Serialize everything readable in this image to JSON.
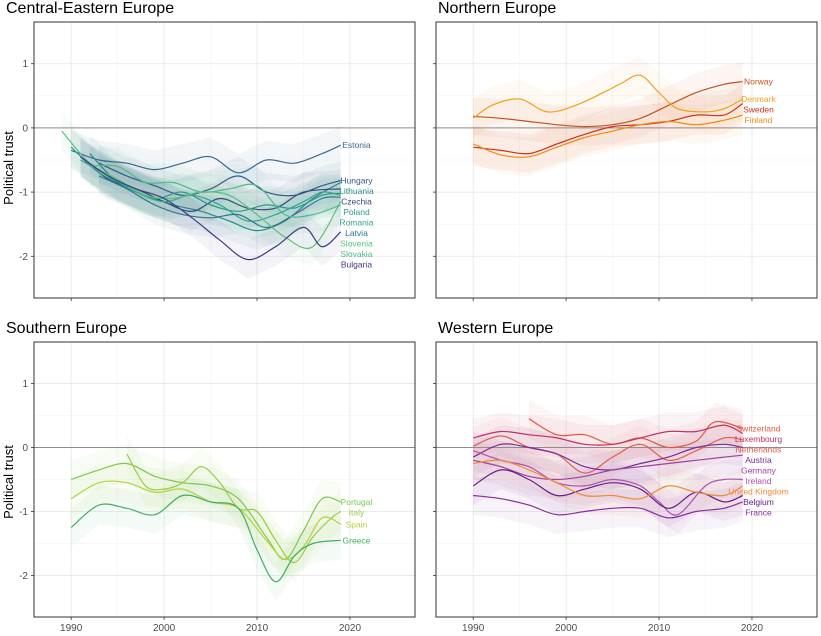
{
  "chart_data": [
    {
      "type": "line",
      "title": "Central-Eastern Europe",
      "ylabel": "Political trust",
      "xlim": [
        1986,
        2027
      ],
      "ylim": [
        -2.65,
        1.65
      ],
      "xticks": [
        1990,
        2000,
        2010,
        2020
      ],
      "yticks": [
        1,
        0,
        -1,
        -2
      ],
      "reference_line": 0,
      "grid": true,
      "ribbons": true,
      "series": [
        {
          "name": "Estonia",
          "color": "#3b6a8f",
          "x": [
            1990,
            1993,
            1996,
            1999,
            2002,
            2005,
            2008,
            2011,
            2014,
            2017,
            2019
          ],
          "y": [
            -0.35,
            -0.5,
            -0.55,
            -0.65,
            -0.55,
            -0.45,
            -0.7,
            -0.5,
            -0.55,
            -0.4,
            -0.27
          ]
        },
        {
          "name": "Hungary",
          "color": "#36588a",
          "x": [
            1993,
            1996,
            1999,
            2002,
            2005,
            2008,
            2011,
            2014,
            2017,
            2019
          ],
          "y": [
            -0.55,
            -0.75,
            -0.9,
            -1.05,
            -0.95,
            -0.75,
            -1.0,
            -1.05,
            -0.9,
            -0.82
          ]
        },
        {
          "name": "Lithuania",
          "color": "#2b8a8c",
          "x": [
            1992,
            1995,
            1998,
            2001,
            2004,
            2007,
            2010,
            2013,
            2016,
            2019
          ],
          "y": [
            -0.4,
            -0.85,
            -1.05,
            -1.2,
            -1.3,
            -1.45,
            -1.6,
            -1.45,
            -1.1,
            -0.85
          ]
        },
        {
          "name": "Czechia",
          "color": "#2f4c79",
          "x": [
            1991,
            1994,
            1997,
            2000,
            2003,
            2006,
            2009,
            2012,
            2015,
            2019
          ],
          "y": [
            -0.45,
            -0.8,
            -0.95,
            -1.15,
            -1.3,
            -1.1,
            -1.25,
            -1.25,
            -1.0,
            -0.95
          ]
        },
        {
          "name": "Poland",
          "color": "#2a9a8a",
          "x": [
            1990,
            1993,
            1996,
            1999,
            2002,
            2005,
            2008,
            2011,
            2014,
            2017,
            2019
          ],
          "y": [
            -0.3,
            -0.7,
            -0.9,
            -1.1,
            -1.0,
            -1.2,
            -1.3,
            -1.2,
            -1.25,
            -1.05,
            -1.02
          ]
        },
        {
          "name": "Romania",
          "color": "#33a58a",
          "x": [
            1991,
            1994,
            1997,
            2000,
            2003,
            2006,
            2009,
            2012,
            2015,
            2017,
            2019
          ],
          "y": [
            -0.5,
            -0.75,
            -1.0,
            -1.15,
            -1.05,
            -1.2,
            -1.45,
            -1.35,
            -1.15,
            -1.0,
            -1.05
          ]
        },
        {
          "name": "Latvia",
          "color": "#2c7a8c",
          "x": [
            1993,
            1996,
            1999,
            2002,
            2005,
            2008,
            2011,
            2014,
            2017,
            2019
          ],
          "y": [
            -0.75,
            -0.95,
            -1.2,
            -1.35,
            -1.4,
            -1.35,
            -1.55,
            -1.35,
            -1.1,
            -1.08
          ]
        },
        {
          "name": "Slovakia",
          "color": "#4cb98a",
          "x": [
            1992,
            1995,
            1998,
            2001,
            2004,
            2007,
            2010,
            2013,
            2016,
            2019
          ],
          "y": [
            -0.6,
            -0.6,
            -0.85,
            -0.85,
            -1.0,
            -0.95,
            -0.9,
            -1.35,
            -1.35,
            -1.2
          ]
        },
        {
          "name": "Slovenia",
          "color": "#5dc07c",
          "x": [
            1989,
            1992,
            1995,
            1998,
            2001,
            2004,
            2007,
            2010,
            2013,
            2016,
            2019
          ],
          "y": [
            -0.05,
            -0.55,
            -0.8,
            -1.05,
            -1.1,
            -1.0,
            -1.05,
            -1.35,
            -1.7,
            -1.85,
            -1.15
          ]
        },
        {
          "name": "Bulgaria",
          "color": "#3e3a8a",
          "x": [
            1991,
            1994,
            1997,
            2000,
            2003,
            2006,
            2009,
            2012,
            2015,
            2017,
            2019
          ],
          "y": [
            -0.45,
            -0.75,
            -0.95,
            -1.1,
            -1.4,
            -1.75,
            -2.05,
            -1.85,
            -1.55,
            -1.85,
            -1.62
          ]
        }
      ]
    },
    {
      "type": "line",
      "title": "Northern Europe",
      "ylabel": "",
      "xlim": [
        1986,
        2027
      ],
      "ylim": [
        -2.65,
        1.65
      ],
      "xticks": [
        1990,
        2000,
        2010,
        2020
      ],
      "yticks": [
        1,
        0,
        -1,
        -2
      ],
      "reference_line": 0,
      "grid": true,
      "ribbons": true,
      "series": [
        {
          "name": "Norway",
          "color": "#c8501e",
          "x": [
            1990,
            1993,
            1996,
            1999,
            2002,
            2005,
            2008,
            2011,
            2014,
            2017,
            2019
          ],
          "y": [
            0.18,
            0.15,
            0.1,
            0.05,
            0.02,
            0.05,
            0.15,
            0.35,
            0.55,
            0.68,
            0.72
          ]
        },
        {
          "name": "Denmark",
          "color": "#f0a020",
          "x": [
            1990,
            1992,
            1995,
            1998,
            2001,
            2004,
            2006,
            2008,
            2010,
            2012,
            2015,
            2017,
            2019
          ],
          "y": [
            0.15,
            0.35,
            0.45,
            0.25,
            0.35,
            0.55,
            0.7,
            0.82,
            0.55,
            0.3,
            0.25,
            0.3,
            0.45
          ]
        },
        {
          "name": "Sweden",
          "color": "#d03020",
          "x": [
            1990,
            1993,
            1996,
            1999,
            2002,
            2005,
            2008,
            2011,
            2014,
            2017,
            2019
          ],
          "y": [
            -0.3,
            -0.35,
            -0.4,
            -0.25,
            -0.1,
            0.02,
            0.05,
            0.1,
            0.2,
            0.2,
            0.38
          ]
        },
        {
          "name": "Finland",
          "color": "#f08a10",
          "x": [
            1990,
            1993,
            1996,
            1999,
            2002,
            2005,
            2008,
            2011,
            2014,
            2017,
            2019
          ],
          "y": [
            -0.25,
            -0.42,
            -0.45,
            -0.3,
            -0.15,
            -0.05,
            0.05,
            0.1,
            0.05,
            0.12,
            0.2
          ]
        }
      ]
    },
    {
      "type": "line",
      "title": "Southern Europe",
      "ylabel": "Political trust",
      "xlim": [
        1986,
        2027
      ],
      "ylim": [
        -2.65,
        1.65
      ],
      "xticks": [
        1990,
        2000,
        2010,
        2020
      ],
      "yticks": [
        1,
        0,
        -1,
        -2
      ],
      "reference_line": 0,
      "grid": true,
      "ribbons": true,
      "series": [
        {
          "name": "Portugal",
          "color": "#7dc850",
          "x": [
            1990,
            1993,
            1996,
            1999,
            2002,
            2005,
            2008,
            2011,
            2013,
            2015,
            2017,
            2019
          ],
          "y": [
            -0.5,
            -0.35,
            -0.25,
            -0.45,
            -0.55,
            -0.6,
            -0.8,
            -1.4,
            -1.75,
            -1.3,
            -0.8,
            -0.85
          ]
        },
        {
          "name": "Italy",
          "color": "#9acd40",
          "x": [
            1996,
            1998,
            2000,
            2002,
            2004,
            2006,
            2008,
            2010,
            2012,
            2014,
            2016,
            2018,
            2019
          ],
          "y": [
            -0.1,
            -0.6,
            -0.65,
            -0.55,
            -0.3,
            -0.55,
            -0.95,
            -1.0,
            -1.45,
            -1.8,
            -1.4,
            -1.1,
            -1.0
          ]
        },
        {
          "name": "Spain",
          "color": "#b4d23c",
          "x": [
            1990,
            1993,
            1996,
            1999,
            2002,
            2005,
            2008,
            2011,
            2013,
            2015,
            2017,
            2019
          ],
          "y": [
            -0.8,
            -0.55,
            -0.55,
            -0.7,
            -0.65,
            -0.85,
            -0.95,
            -1.45,
            -1.75,
            -1.55,
            -1.1,
            -1.2
          ]
        },
        {
          "name": "Greece",
          "color": "#3fb060",
          "x": [
            1990,
            1993,
            1996,
            1999,
            2002,
            2005,
            2008,
            2010,
            2012,
            2014,
            2016,
            2019
          ],
          "y": [
            -1.25,
            -0.9,
            -0.95,
            -1.05,
            -0.75,
            -0.85,
            -0.95,
            -1.6,
            -2.1,
            -1.7,
            -1.5,
            -1.45
          ]
        }
      ]
    },
    {
      "type": "line",
      "title": "Western Europe",
      "ylabel": "",
      "xlim": [
        1986,
        2027
      ],
      "ylim": [
        -2.65,
        1.65
      ],
      "xticks": [
        1990,
        2000,
        2010,
        2020
      ],
      "yticks": [
        1,
        0,
        -1,
        -2
      ],
      "reference_line": 0,
      "grid": true,
      "ribbons": true,
      "series": [
        {
          "name": "Switzerland",
          "color": "#e05a40",
          "x": [
            1996,
            1999,
            2002,
            2005,
            2008,
            2011,
            2014,
            2016,
            2019
          ],
          "y": [
            0.45,
            0.2,
            0.2,
            0.05,
            0.15,
            0.0,
            0.1,
            0.4,
            0.3
          ]
        },
        {
          "name": "Luxembourg",
          "color": "#c0306a",
          "x": [
            1990,
            1993,
            1996,
            1999,
            2002,
            2005,
            2008,
            2011,
            2014,
            2017,
            2019
          ],
          "y": [
            0.15,
            0.25,
            0.2,
            0.15,
            0.05,
            0.05,
            0.15,
            0.25,
            0.25,
            0.35,
            0.22
          ]
        },
        {
          "name": "Netherlands",
          "color": "#e0604a",
          "x": [
            1990,
            1993,
            1996,
            1999,
            2002,
            2005,
            2008,
            2011,
            2014,
            2017,
            2019
          ],
          "y": [
            0.02,
            0.18,
            0.0,
            -0.1,
            -0.4,
            -0.15,
            0.05,
            -0.2,
            -0.05,
            0.15,
            0.12
          ]
        },
        {
          "name": "Austria",
          "color": "#7a2a9a",
          "x": [
            1990,
            1993,
            1996,
            1999,
            2002,
            2005,
            2008,
            2011,
            2014,
            2017,
            2019
          ],
          "y": [
            -0.15,
            0.05,
            0.0,
            -0.1,
            -0.3,
            -0.35,
            -0.25,
            -0.15,
            0.0,
            0.05,
            0.0
          ]
        },
        {
          "name": "Germany",
          "color": "#a040a0",
          "x": [
            1990,
            1993,
            1996,
            1999,
            2002,
            2005,
            2008,
            2011,
            2014,
            2017,
            2019
          ],
          "y": [
            -0.2,
            -0.3,
            -0.45,
            -0.5,
            -0.45,
            -0.35,
            -0.3,
            -0.25,
            -0.2,
            -0.15,
            -0.12
          ]
        },
        {
          "name": "Ireland",
          "color": "#b050b0",
          "x": [
            1990,
            1993,
            1996,
            1999,
            2002,
            2005,
            2008,
            2010,
            2012,
            2015,
            2017,
            2019
          ],
          "y": [
            -0.05,
            -0.2,
            -0.3,
            -0.55,
            -0.6,
            -0.5,
            -0.6,
            -0.85,
            -1.05,
            -0.6,
            -0.5,
            -0.5
          ]
        },
        {
          "name": "Belgium",
          "color": "#6a1a8a",
          "x": [
            1990,
            1993,
            1996,
            1999,
            2002,
            2005,
            2008,
            2011,
            2014,
            2017,
            2019
          ],
          "y": [
            -0.6,
            -0.35,
            -0.5,
            -0.75,
            -0.65,
            -0.55,
            -0.65,
            -0.95,
            -0.7,
            -0.85,
            -0.75
          ]
        },
        {
          "name": "United Kingdom",
          "color": "#f08a30",
          "x": [
            1990,
            1993,
            1996,
            1999,
            2002,
            2005,
            2008,
            2011,
            2014,
            2017,
            2019
          ],
          "y": [
            -0.25,
            -0.2,
            -0.35,
            -0.55,
            -0.75,
            -0.75,
            -0.8,
            -0.6,
            -0.7,
            -0.75,
            -0.6
          ]
        },
        {
          "name": "France",
          "color": "#8a2aa0",
          "x": [
            1990,
            1993,
            1996,
            1999,
            2002,
            2005,
            2008,
            2011,
            2014,
            2017,
            2019
          ],
          "y": [
            -0.75,
            -0.8,
            -0.9,
            -1.05,
            -1.0,
            -0.95,
            -0.95,
            -1.1,
            -1.0,
            -0.95,
            -0.85
          ]
        }
      ]
    }
  ]
}
